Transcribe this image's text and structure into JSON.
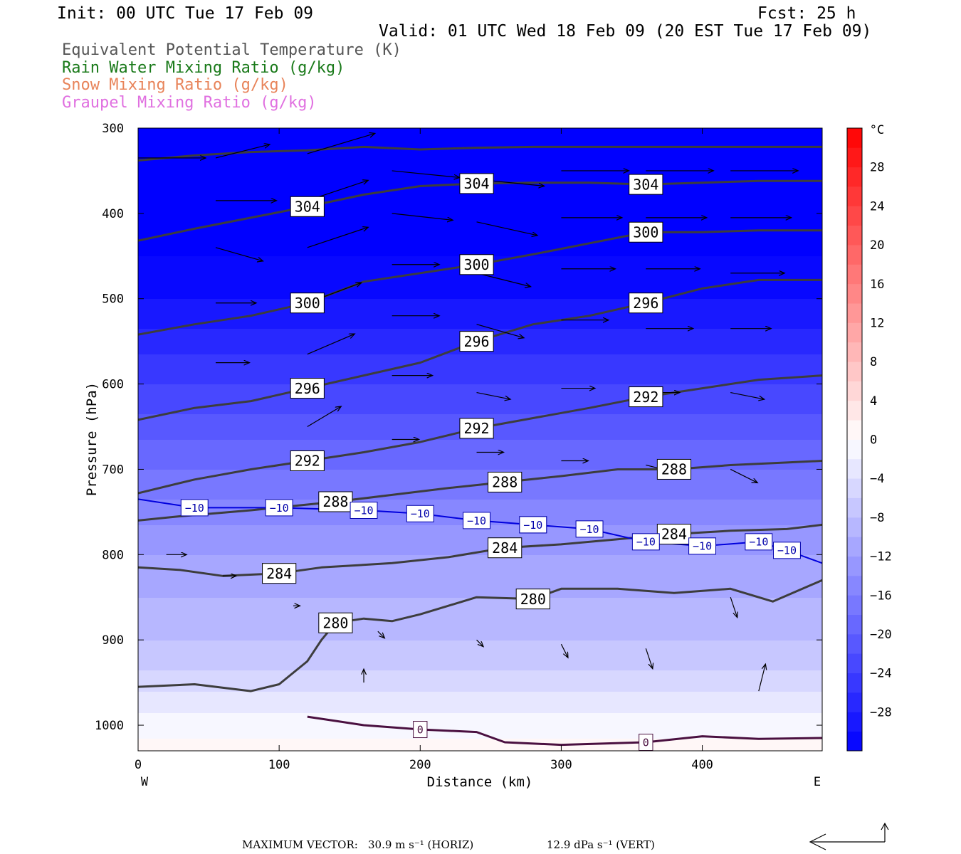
{
  "header": {
    "init": "Init: 00 UTC Tue 17 Feb 09",
    "fcst": "Fcst:   25 h",
    "valid": "Valid: 01 UTC Wed 18 Feb 09 (20 EST Tue 17 Feb 09)"
  },
  "legend": [
    {
      "text": "Equivalent Potential Temperature (K)",
      "color": "#555555"
    },
    {
      "text": "Rain Water Mixing Ratio (g/kg)",
      "color": "#1a7a1a"
    },
    {
      "text": "Snow Mixing Ratio (g/kg)",
      "color": "#e8845a"
    },
    {
      "text": "Graupel Mixing Ratio (g/kg)",
      "color": "#e070e0"
    }
  ],
  "footer": {
    "max_vector_label": "MAXIMUM VECTOR:",
    "horiz": "30.9 m s⁻¹ (HORIZ)",
    "vert": "12.9 dPa s⁻¹ (VERT)"
  },
  "chart_data": {
    "type": "heatmap",
    "xlabel": "Distance (km)",
    "ylabel": "Pressure (hPa)",
    "xlim": [
      0,
      485
    ],
    "ylim": [
      1030,
      300
    ],
    "x_ticks": [
      0,
      100,
      200,
      300,
      400
    ],
    "y_ticks": [
      300,
      400,
      500,
      600,
      700,
      800,
      900,
      1000
    ],
    "x_end_labels": {
      "left": "W",
      "right": "E"
    },
    "colorbar": {
      "unit": "°C",
      "tick_labels": [
        "28",
        "24",
        "20",
        "16",
        "12",
        "8",
        "4",
        "0",
        "−4",
        "−8",
        "−12",
        "−16",
        "−20",
        "−24",
        "−28"
      ],
      "levels": [
        -32,
        -30,
        -28,
        -26,
        -24,
        -22,
        -20,
        -18,
        -16,
        -14,
        -12,
        -10,
        -8,
        -6,
        -4,
        -2,
        0,
        2,
        4,
        6,
        8,
        10,
        12,
        14,
        16,
        18,
        20,
        22,
        24,
        26,
        28,
        30,
        32
      ],
      "cold_color": "#0000ff",
      "neutral_color": "#ffffff",
      "warm_color": "#ff0000"
    },
    "temperature_field": {
      "rows_hpa": [
        300,
        400,
        500,
        550,
        600,
        650,
        700,
        750,
        800,
        850,
        900,
        950,
        1000,
        1030
      ],
      "values_c": [
        -42,
        -34,
        -30,
        -27,
        -24,
        -21,
        -18,
        -15,
        -12,
        -10,
        -8,
        -5,
        -1,
        1
      ]
    },
    "theta_e_contours": [
      {
        "value": 280,
        "labels": [
          "280",
          "280"
        ],
        "points": [
          [
            0,
            955
          ],
          [
            40,
            952
          ],
          [
            80,
            960
          ],
          [
            100,
            952
          ],
          [
            120,
            925
          ],
          [
            130,
            900
          ],
          [
            140,
            880
          ],
          [
            160,
            875
          ],
          [
            180,
            878
          ],
          [
            200,
            870
          ],
          [
            220,
            860
          ],
          [
            240,
            850
          ],
          [
            280,
            852
          ],
          [
            300,
            840
          ],
          [
            340,
            840
          ],
          [
            380,
            845
          ],
          [
            420,
            840
          ],
          [
            450,
            855
          ],
          [
            485,
            830
          ]
        ]
      },
      {
        "value": 284,
        "labels": [
          "284",
          "284",
          "284"
        ],
        "points": [
          [
            0,
            815
          ],
          [
            30,
            818
          ],
          [
            60,
            825
          ],
          [
            100,
            822
          ],
          [
            130,
            815
          ],
          [
            180,
            810
          ],
          [
            220,
            803
          ],
          [
            260,
            792
          ],
          [
            300,
            788
          ],
          [
            340,
            782
          ],
          [
            380,
            776
          ],
          [
            420,
            772
          ],
          [
            460,
            770
          ],
          [
            485,
            765
          ]
        ]
      },
      {
        "value": 288,
        "labels": [
          "288",
          "288",
          "288"
        ],
        "points": [
          [
            0,
            760
          ],
          [
            30,
            755
          ],
          [
            80,
            748
          ],
          [
            140,
            738
          ],
          [
            180,
            730
          ],
          [
            220,
            722
          ],
          [
            260,
            715
          ],
          [
            300,
            708
          ],
          [
            340,
            700
          ],
          [
            380,
            700
          ],
          [
            420,
            695
          ],
          [
            460,
            692
          ],
          [
            485,
            690
          ]
        ]
      },
      {
        "value": 292,
        "labels": [
          "292",
          "292",
          "292"
        ],
        "points": [
          [
            0,
            728
          ],
          [
            40,
            712
          ],
          [
            80,
            700
          ],
          [
            120,
            690
          ],
          [
            160,
            680
          ],
          [
            200,
            668
          ],
          [
            240,
            652
          ],
          [
            280,
            640
          ],
          [
            320,
            628
          ],
          [
            360,
            615
          ],
          [
            400,
            605
          ],
          [
            440,
            595
          ],
          [
            485,
            590
          ]
        ]
      },
      {
        "value": 296,
        "labels": [
          "296",
          "296",
          "296"
        ],
        "points": [
          [
            0,
            642
          ],
          [
            40,
            628
          ],
          [
            80,
            620
          ],
          [
            120,
            605
          ],
          [
            160,
            590
          ],
          [
            200,
            575
          ],
          [
            240,
            550
          ],
          [
            280,
            530
          ],
          [
            320,
            520
          ],
          [
            360,
            505
          ],
          [
            400,
            488
          ],
          [
            440,
            478
          ],
          [
            485,
            478
          ]
        ]
      },
      {
        "value": 300,
        "labels": [
          "300",
          "300",
          "300"
        ],
        "points": [
          [
            0,
            542
          ],
          [
            40,
            530
          ],
          [
            80,
            520
          ],
          [
            120,
            505
          ],
          [
            160,
            480
          ],
          [
            200,
            470
          ],
          [
            240,
            460
          ],
          [
            280,
            448
          ],
          [
            320,
            435
          ],
          [
            360,
            422
          ],
          [
            400,
            422
          ],
          [
            440,
            420
          ],
          [
            485,
            420
          ]
        ]
      },
      {
        "value": 304,
        "labels": [
          "304",
          "304",
          "304"
        ],
        "points": [
          [
            0,
            432
          ],
          [
            40,
            418
          ],
          [
            80,
            405
          ],
          [
            120,
            392
          ],
          [
            160,
            378
          ],
          [
            200,
            368
          ],
          [
            240,
            365
          ],
          [
            280,
            364
          ],
          [
            320,
            364
          ],
          [
            360,
            366
          ],
          [
            400,
            364
          ],
          [
            440,
            362
          ],
          [
            485,
            362
          ]
        ]
      },
      {
        "value": 308,
        "labels": [],
        "points": [
          [
            0,
            338
          ],
          [
            40,
            332
          ],
          [
            80,
            328
          ],
          [
            120,
            326
          ],
          [
            160,
            322
          ],
          [
            200,
            325
          ],
          [
            240,
            323
          ],
          [
            280,
            322
          ],
          [
            320,
            322
          ],
          [
            360,
            322
          ],
          [
            400,
            322
          ],
          [
            440,
            322
          ],
          [
            485,
            322
          ]
        ]
      }
    ],
    "temperature_contours": [
      {
        "value": -10,
        "labels": [
          "−10",
          "−10",
          "−10",
          "−10",
          "−10",
          "−10",
          "−10",
          "−10",
          "−10",
          "−10",
          "−10",
          "−10"
        ],
        "points": [
          [
            0,
            735
          ],
          [
            40,
            745
          ],
          [
            100,
            745
          ],
          [
            160,
            748
          ],
          [
            200,
            752
          ],
          [
            240,
            760
          ],
          [
            280,
            765
          ],
          [
            320,
            770
          ],
          [
            360,
            785
          ],
          [
            400,
            790
          ],
          [
            440,
            785
          ],
          [
            460,
            795
          ],
          [
            485,
            810
          ]
        ]
      },
      {
        "value": 0,
        "labels": [
          "0",
          "0"
        ],
        "points": [
          [
            120,
            990
          ],
          [
            140,
            995
          ],
          [
            160,
            1000
          ],
          [
            200,
            1005
          ],
          [
            240,
            1008
          ],
          [
            260,
            1020
          ],
          [
            300,
            1023
          ],
          [
            360,
            1020
          ],
          [
            400,
            1013
          ],
          [
            440,
            1016
          ],
          [
            485,
            1015
          ]
        ]
      }
    ],
    "wind_vectors": [
      {
        "x": 0,
        "p": 335,
        "u": 1.0,
        "w": 0.0
      },
      {
        "x": 55,
        "p": 335,
        "u": 0.8,
        "w": -0.2
      },
      {
        "x": 55,
        "p": 385,
        "u": 0.9,
        "w": 0.0
      },
      {
        "x": 55,
        "p": 440,
        "u": 0.7,
        "w": 0.2
      },
      {
        "x": 55,
        "p": 505,
        "u": 0.6,
        "w": 0.0
      },
      {
        "x": 55,
        "p": 575,
        "u": 0.5,
        "w": 0.0
      },
      {
        "x": 120,
        "p": 330,
        "u": 1.0,
        "w": -0.3
      },
      {
        "x": 120,
        "p": 385,
        "u": 0.9,
        "w": -0.3
      },
      {
        "x": 120,
        "p": 440,
        "u": 0.9,
        "w": -0.3
      },
      {
        "x": 120,
        "p": 505,
        "u": 0.8,
        "w": -0.3
      },
      {
        "x": 120,
        "p": 565,
        "u": 0.7,
        "w": -0.3
      },
      {
        "x": 120,
        "p": 650,
        "u": 0.5,
        "w": -0.3
      },
      {
        "x": 180,
        "p": 350,
        "u": 1.0,
        "w": 0.1
      },
      {
        "x": 180,
        "p": 400,
        "u": 0.9,
        "w": 0.1
      },
      {
        "x": 180,
        "p": 460,
        "u": 0.7,
        "w": 0.0
      },
      {
        "x": 180,
        "p": 520,
        "u": 0.7,
        "w": 0.0
      },
      {
        "x": 180,
        "p": 590,
        "u": 0.6,
        "w": 0.0
      },
      {
        "x": 180,
        "p": 665,
        "u": 0.4,
        "w": 0.0
      },
      {
        "x": 240,
        "p": 360,
        "u": 1.0,
        "w": 0.1
      },
      {
        "x": 240,
        "p": 410,
        "u": 0.9,
        "w": 0.2
      },
      {
        "x": 240,
        "p": 470,
        "u": 0.8,
        "w": 0.2
      },
      {
        "x": 240,
        "p": 530,
        "u": 0.7,
        "w": 0.2
      },
      {
        "x": 240,
        "p": 610,
        "u": 0.5,
        "w": 0.1
      },
      {
        "x": 240,
        "p": 680,
        "u": 0.4,
        "w": 0.0
      },
      {
        "x": 300,
        "p": 350,
        "u": 1.0,
        "w": 0.0
      },
      {
        "x": 300,
        "p": 405,
        "u": 0.9,
        "w": 0.0
      },
      {
        "x": 300,
        "p": 465,
        "u": 0.8,
        "w": 0.0
      },
      {
        "x": 300,
        "p": 525,
        "u": 0.7,
        "w": 0.0
      },
      {
        "x": 300,
        "p": 605,
        "u": 0.5,
        "w": 0.0
      },
      {
        "x": 300,
        "p": 690,
        "u": 0.4,
        "w": 0.0
      },
      {
        "x": 360,
        "p": 350,
        "u": 1.0,
        "w": 0.0
      },
      {
        "x": 360,
        "p": 405,
        "u": 0.9,
        "w": 0.0
      },
      {
        "x": 360,
        "p": 465,
        "u": 0.8,
        "w": 0.0
      },
      {
        "x": 360,
        "p": 535,
        "u": 0.7,
        "w": 0.0
      },
      {
        "x": 360,
        "p": 610,
        "u": 0.5,
        "w": 0.0
      },
      {
        "x": 360,
        "p": 695,
        "u": 0.4,
        "w": 0.1
      },
      {
        "x": 420,
        "p": 350,
        "u": 1.0,
        "w": 0.0
      },
      {
        "x": 420,
        "p": 405,
        "u": 0.9,
        "w": 0.0
      },
      {
        "x": 420,
        "p": 470,
        "u": 0.8,
        "w": 0.0
      },
      {
        "x": 420,
        "p": 535,
        "u": 0.6,
        "w": 0.0
      },
      {
        "x": 420,
        "p": 610,
        "u": 0.5,
        "w": 0.1
      },
      {
        "x": 420,
        "p": 700,
        "u": 0.4,
        "w": 0.2
      },
      {
        "x": 20,
        "p": 800,
        "u": 0.3,
        "w": 0.0
      },
      {
        "x": 60,
        "p": 825,
        "u": 0.2,
        "w": 0.0
      },
      {
        "x": 110,
        "p": 860,
        "u": 0.1,
        "w": 0.0
      },
      {
        "x": 170,
        "p": 890,
        "u": 0.1,
        "w": 0.1
      },
      {
        "x": 240,
        "p": 900,
        "u": 0.1,
        "w": 0.1
      },
      {
        "x": 300,
        "p": 905,
        "u": 0.1,
        "w": 0.2
      },
      {
        "x": 360,
        "p": 910,
        "u": 0.1,
        "w": 0.3
      },
      {
        "x": 420,
        "p": 850,
        "u": 0.1,
        "w": 0.3
      },
      {
        "x": 440,
        "p": 960,
        "u": 0.1,
        "w": -0.4
      },
      {
        "x": 160,
        "p": 950,
        "u": 0.0,
        "w": -0.2
      }
    ]
  }
}
